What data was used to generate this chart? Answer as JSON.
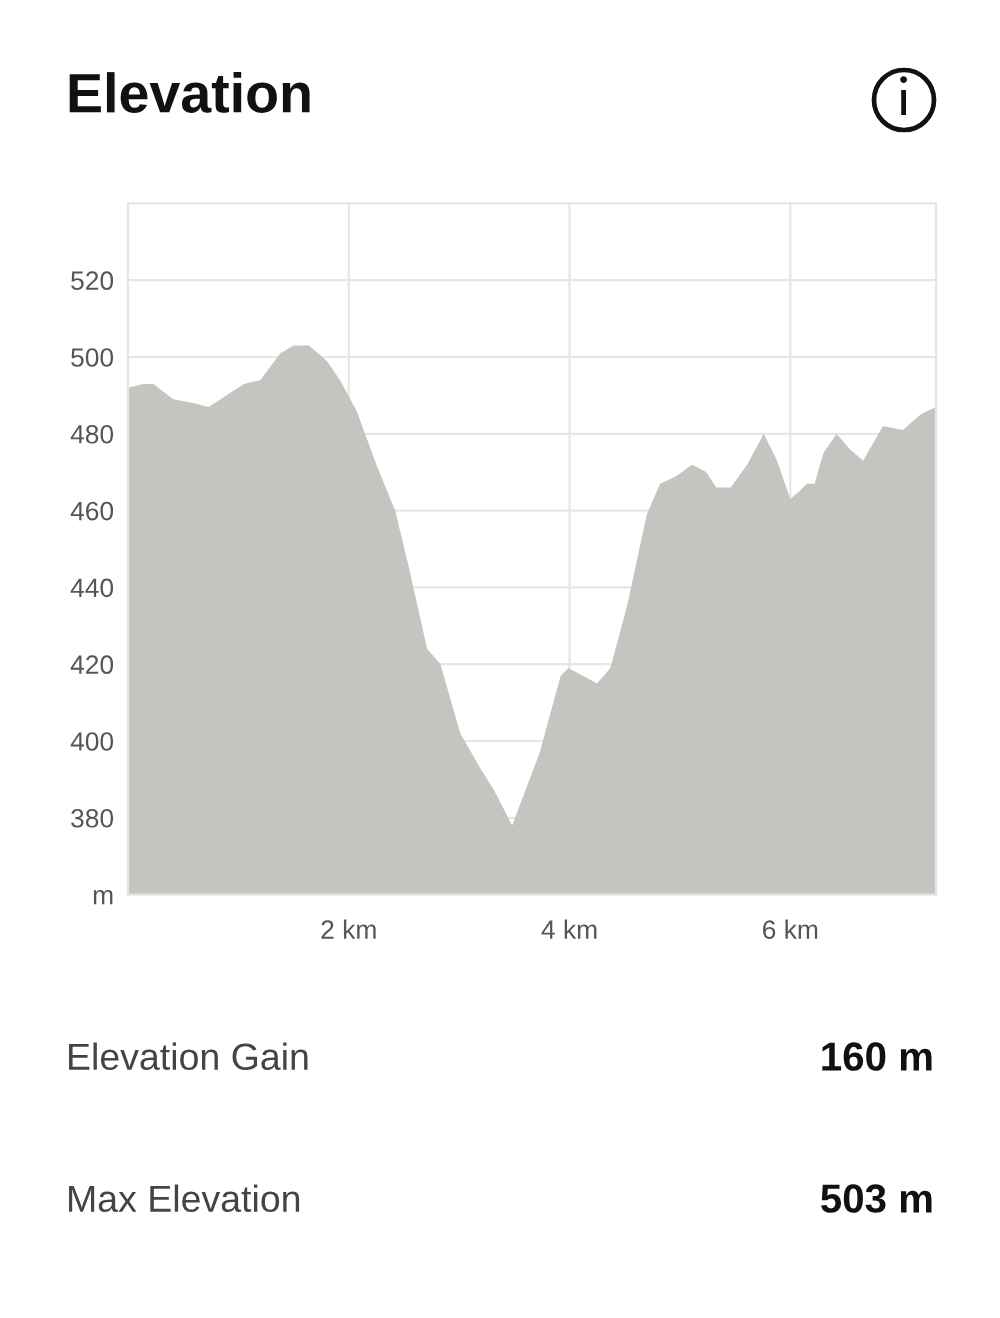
{
  "chart_data": {
    "type": "area",
    "title": "Elevation",
    "x": [
      0,
      0.14,
      0.23,
      0.41,
      0.59,
      0.73,
      0.89,
      1.05,
      1.2,
      1.38,
      1.5,
      1.64,
      1.8,
      1.92,
      2.07,
      2.25,
      2.42,
      2.53,
      2.71,
      2.83,
      3.01,
      3.19,
      3.32,
      3.48,
      3.73,
      3.92,
      3.99,
      4.25,
      4.37,
      4.52,
      4.7,
      4.82,
      4.97,
      5.11,
      5.24,
      5.33,
      5.46,
      5.61,
      5.76,
      5.88,
      6.0,
      6.08,
      6.15,
      6.22,
      6.3,
      6.42,
      6.54,
      6.66,
      6.84,
      7.02,
      7.18,
      7.32
    ],
    "values": [
      492,
      493,
      493,
      489,
      488,
      487,
      490,
      493,
      494,
      501,
      503,
      503,
      499,
      494,
      486,
      472,
      460,
      447,
      424,
      420,
      402,
      393,
      387,
      378,
      397,
      417,
      419,
      415,
      419,
      435,
      459,
      467,
      469,
      472,
      470,
      466,
      466,
      472,
      480,
      473,
      463,
      465,
      467,
      467,
      475,
      480,
      476,
      473,
      482,
      481,
      485,
      487
    ],
    "color": "#c4c4c0",
    "xlim": [
      0,
      7.32
    ],
    "ylim": [
      360,
      540
    ],
    "xticks": [
      {
        "value": 2,
        "label": "2 km"
      },
      {
        "value": 4,
        "label": "4 km"
      },
      {
        "value": 6,
        "label": "6 km"
      }
    ],
    "yticks": [
      {
        "value": 360,
        "label": "m"
      },
      380,
      400,
      420,
      440,
      460,
      480,
      500,
      520
    ],
    "grid": true,
    "annotations": [
      "Elevation Gain",
      "160 m",
      "Max Elevation",
      "503 m"
    ]
  }
}
